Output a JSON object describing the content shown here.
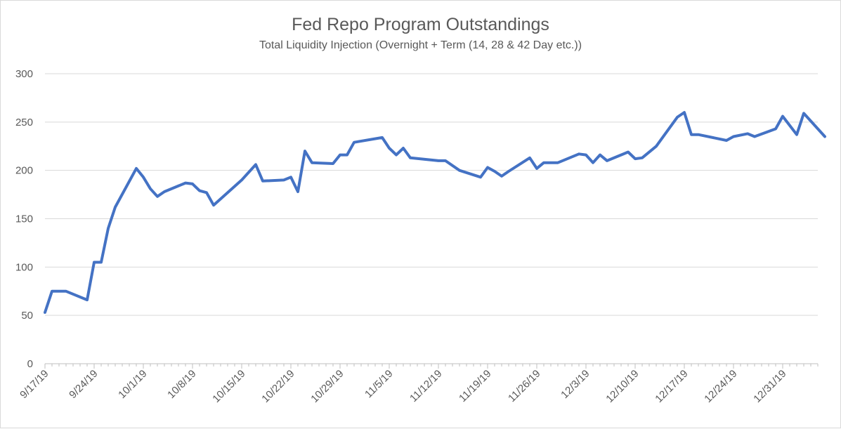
{
  "chart_data": {
    "type": "line",
    "title": "Fed Repo Program Outstandings",
    "subtitle": "Total Liquidity Injection (Overnight + Term (14, 28 & 42 Day etc.))",
    "xlabel": "",
    "ylabel": "",
    "ylim": [
      0,
      300
    ],
    "yticks": [
      "0",
      "50",
      "100",
      "150",
      "200",
      "250",
      "300"
    ],
    "xlim": [
      "2019-09-17",
      "2020-01-05"
    ],
    "xtick_labels": [
      "9/17/19",
      "9/24/19",
      "10/1/19",
      "10/8/19",
      "10/15/19",
      "10/22/19",
      "10/29/19",
      "11/5/19",
      "11/12/19",
      "11/19/19",
      "11/26/19",
      "12/3/19",
      "12/10/19",
      "12/17/19",
      "12/24/19",
      "12/31/19"
    ],
    "grid": "horizontal",
    "legend": "none",
    "line_color": "#4472c4",
    "series": [
      {
        "x": [
          "2019-09-17",
          "2019-09-18",
          "2019-09-19",
          "2019-09-20",
          "2019-09-23",
          "2019-09-24",
          "2019-09-25",
          "2019-09-26",
          "2019-09-27",
          "2019-09-30",
          "2019-10-01",
          "2019-10-02",
          "2019-10-03",
          "2019-10-04",
          "2019-10-07",
          "2019-10-08",
          "2019-10-09",
          "2019-10-10",
          "2019-10-11",
          "2019-10-15",
          "2019-10-17",
          "2019-10-18",
          "2019-10-21",
          "2019-10-22",
          "2019-10-23",
          "2019-10-24",
          "2019-10-25",
          "2019-10-28",
          "2019-10-29",
          "2019-10-30",
          "2019-10-31",
          "2019-11-04",
          "2019-11-05",
          "2019-11-06",
          "2019-11-07",
          "2019-11-08",
          "2019-11-12",
          "2019-11-13",
          "2019-11-15",
          "2019-11-18",
          "2019-11-19",
          "2019-11-20",
          "2019-11-21",
          "2019-11-22",
          "2019-11-25",
          "2019-11-26",
          "2019-11-27",
          "2019-11-29",
          "2019-12-02",
          "2019-12-03",
          "2019-12-04",
          "2019-12-05",
          "2019-12-06",
          "2019-12-09",
          "2019-12-10",
          "2019-12-11",
          "2019-12-13",
          "2019-12-16",
          "2019-12-17",
          "2019-12-18",
          "2019-12-19",
          "2019-12-23",
          "2019-12-24",
          "2019-12-26",
          "2019-12-27",
          "2019-12-30",
          "2019-12-31",
          "2020-01-02",
          "2020-01-03",
          "2020-01-06"
        ],
        "values": [
          53,
          75,
          75,
          75,
          66,
          105,
          105,
          140,
          162,
          202,
          193,
          181,
          173,
          178,
          187,
          186,
          179,
          177,
          164,
          190,
          206,
          189,
          190,
          193,
          178,
          220,
          208,
          207,
          216,
          216,
          229,
          234,
          223,
          216,
          223,
          213,
          210,
          210,
          200,
          193,
          203,
          199,
          194,
          199,
          213,
          202,
          208,
          208,
          217,
          216,
          208,
          216,
          210,
          219,
          212,
          213,
          225,
          255,
          260,
          237,
          237,
          231,
          235,
          238,
          235,
          243,
          256,
          237,
          259,
          235
        ]
      }
    ]
  }
}
